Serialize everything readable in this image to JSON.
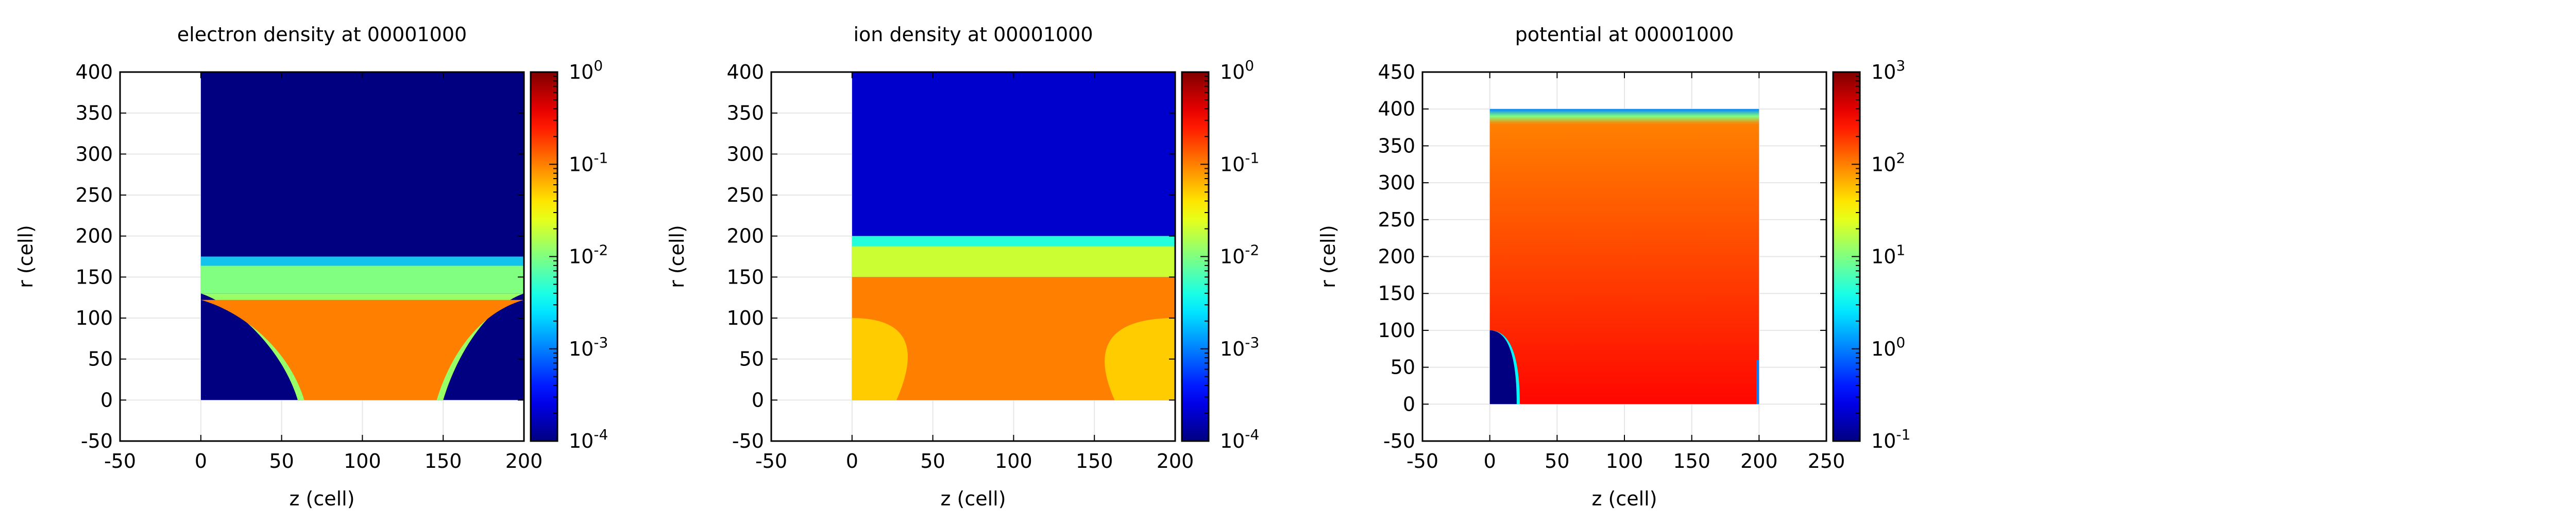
{
  "chart_data": [
    {
      "type": "heatmap",
      "title": "electron density at 00001000",
      "xlabel": "z (cell)",
      "ylabel": "r (cell)",
      "xlim": [
        -50,
        200
      ],
      "ylim": [
        -50,
        400
      ],
      "xticks": [
        "-50",
        "0",
        "50",
        "100",
        "150",
        "200"
      ],
      "yticks": [
        "-50",
        "0",
        "50",
        "100",
        "150",
        "200",
        "250",
        "300",
        "350",
        "400"
      ],
      "data_extent": {
        "z": [
          0,
          200
        ],
        "r": [
          0,
          400
        ]
      },
      "colorbar": {
        "scale": "log",
        "range": [
          0.0001,
          1
        ],
        "ticks": [
          {
            "base": "10",
            "exp": "-4"
          },
          {
            "base": "10",
            "exp": "-3"
          },
          {
            "base": "10",
            "exp": "-2"
          },
          {
            "base": "10",
            "exp": "-1"
          },
          {
            "base": "10",
            "exp": "0"
          }
        ]
      },
      "regions": [
        {
          "shape": "trapezoid",
          "value": 0.1,
          "r_min": 0,
          "r_max": 130,
          "z_bottom": [
            60,
            150
          ],
          "z_top": [
            0,
            200
          ]
        },
        {
          "shape": "layer",
          "value": 0.01,
          "r_min": 130,
          "r_max": 175,
          "z": [
            0,
            200
          ]
        },
        {
          "shape": "background",
          "value": 0.0001
        }
      ],
      "grid": true,
      "colormap": "jet"
    },
    {
      "type": "heatmap",
      "title": "ion density at 00001000",
      "xlabel": "z (cell)",
      "ylabel": "r (cell)",
      "xlim": [
        -50,
        200
      ],
      "ylim": [
        -50,
        400
      ],
      "xticks": [
        "-50",
        "0",
        "50",
        "100",
        "150",
        "200"
      ],
      "yticks": [
        "-50",
        "0",
        "50",
        "100",
        "150",
        "200",
        "250",
        "300",
        "350",
        "400"
      ],
      "data_extent": {
        "z": [
          0,
          200
        ],
        "r": [
          0,
          400
        ]
      },
      "colorbar": {
        "scale": "log",
        "range": [
          0.0001,
          1
        ],
        "ticks": [
          {
            "base": "10",
            "exp": "-4"
          },
          {
            "base": "10",
            "exp": "-3"
          },
          {
            "base": "10",
            "exp": "-2"
          },
          {
            "base": "10",
            "exp": "-1"
          },
          {
            "base": "10",
            "exp": "0"
          }
        ]
      },
      "regions": [
        {
          "shape": "slab",
          "value": 0.1,
          "r_min": 0,
          "r_max": 150,
          "z": [
            0,
            200
          ]
        },
        {
          "shape": "corner_lobes",
          "value": 0.05,
          "r_max": 100,
          "z_width": 50
        },
        {
          "shape": "layer",
          "value": 0.02,
          "r_min": 150,
          "r_max": 200,
          "z": [
            0,
            200
          ]
        },
        {
          "shape": "background",
          "value": 0.0002
        }
      ],
      "grid": true,
      "colormap": "jet"
    },
    {
      "type": "heatmap",
      "title": "potential at 00001000",
      "xlabel": "z (cell)",
      "ylabel": "r (cell)",
      "xlim": [
        -50,
        250
      ],
      "ylim": [
        -50,
        450
      ],
      "xticks": [
        "-50",
        "0",
        "50",
        "100",
        "150",
        "200",
        "250"
      ],
      "yticks": [
        "-50",
        "0",
        "50",
        "100",
        "150",
        "200",
        "250",
        "300",
        "350",
        "400",
        "450"
      ],
      "data_extent": {
        "z": [
          0,
          200
        ],
        "r": [
          0,
          400
        ]
      },
      "colorbar": {
        "scale": "log",
        "range": [
          0.1,
          1000
        ],
        "ticks": [
          {
            "base": "10",
            "exp": "-1"
          },
          {
            "base": "10",
            "exp": "0"
          },
          {
            "base": "10",
            "exp": "1"
          },
          {
            "base": "10",
            "exp": "2"
          },
          {
            "base": "10",
            "exp": "3"
          }
        ]
      },
      "regions": [
        {
          "shape": "gradient",
          "value_bottom": 300,
          "value_top": 100,
          "r_min": 0,
          "r_max": 380,
          "z": [
            0,
            200
          ]
        },
        {
          "shape": "top_edge",
          "value_top": 1,
          "r_min": 380,
          "r_max": 400
        },
        {
          "shape": "electrode",
          "value": 0.1,
          "z": [
            0,
            20
          ],
          "r_max": 100
        },
        {
          "shape": "thin_edge",
          "value": 1,
          "z": [
            198,
            200
          ],
          "r_max": 60
        }
      ],
      "grid": true,
      "colormap": "jet"
    }
  ]
}
